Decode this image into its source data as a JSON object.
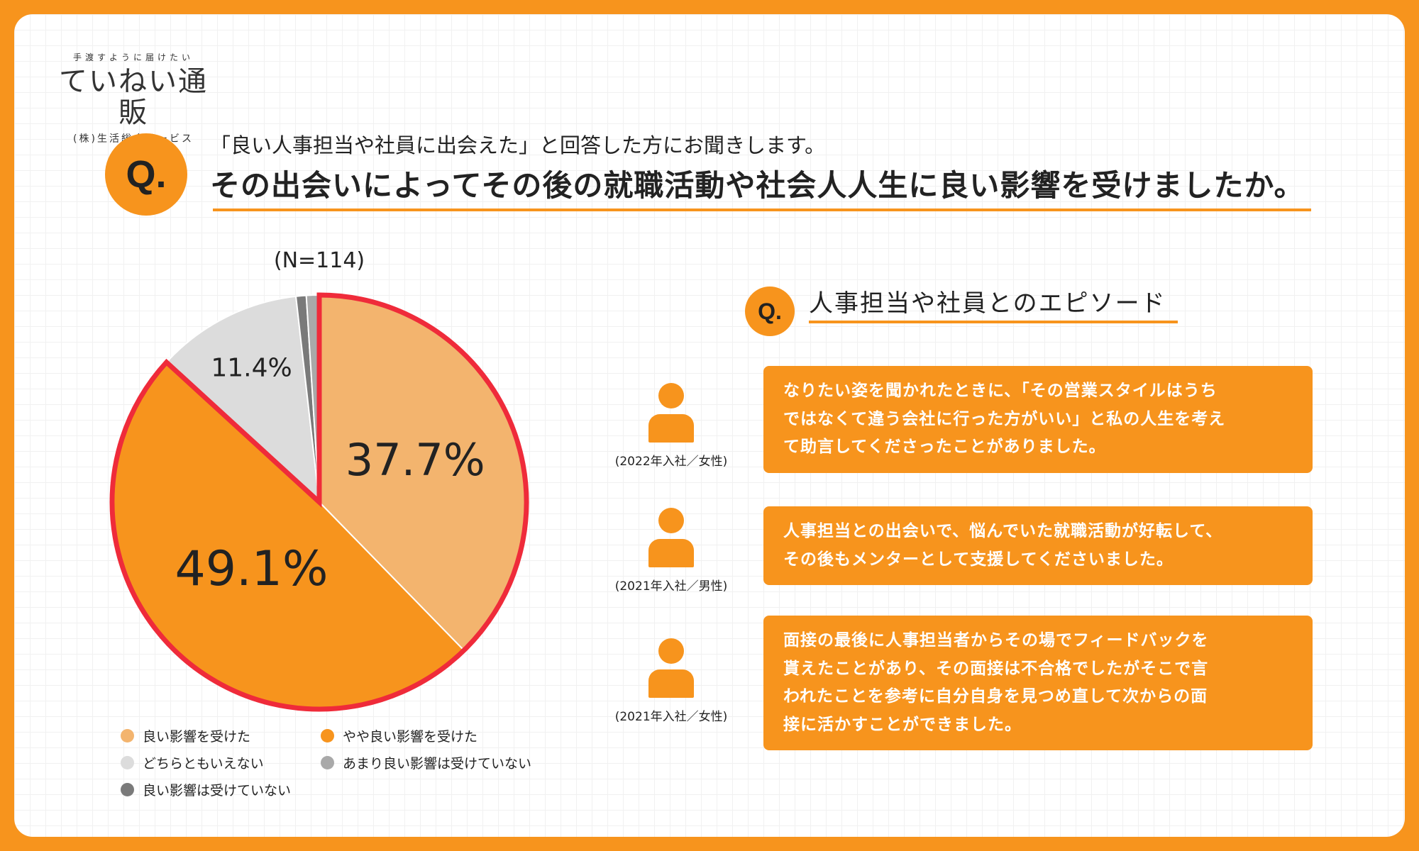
{
  "logo": {
    "tagline": "手渡すように届けたい",
    "name": "ていねい通販",
    "company": "(株)生活総合サービス"
  },
  "question": {
    "badge": "Q.",
    "intro": "「良い人事担当や社員に出会えた」と回答した方にお聞きします。",
    "main": "その出会いによってその後の就職活動や社会人人生に良い影響を受けましたか。"
  },
  "sample_size": "(N=114)",
  "chart_data": {
    "type": "pie",
    "categories": [
      "良い影響を受けた",
      "やや良い影響を受けた",
      "どちらともいえない",
      "あまり良い影響は受けていない",
      "良い影響は受けていない"
    ],
    "values": [
      37.7,
      49.1,
      11.4,
      1.0,
      0.8
    ],
    "colors": [
      "#f3b46e",
      "#f7941d",
      "#dcdcdc",
      "#a9a9a9",
      "#7a7a7a"
    ],
    "labels": [
      "37.7%",
      "49.1%",
      "11.4%",
      "",
      ""
    ],
    "highlight_stroke": "#ef2b3a",
    "legend_placement": "bottom"
  },
  "episodes": {
    "badge": "Q.",
    "title": "人事担当や社員とのエピソード",
    "items": [
      {
        "caption": "(2022年入社／女性)",
        "lines": [
          "なりたい姿を聞かれたときに、「その営業スタイルはうち",
          "ではなくて違う会社に行った方がいい」と私の人生を考え",
          "て助言してくださったことがありました。"
        ]
      },
      {
        "caption": "(2021年入社／男性)",
        "lines": [
          "人事担当との出会いで、悩んでいた就職活動が好転して、",
          "その後もメンターとして支援してくださいました。"
        ]
      },
      {
        "caption": "(2021年入社／女性)",
        "lines": [
          "面接の最後に人事担当者からその場でフィードバックを",
          "貰えたことがあり、その面接は不合格でしたがそこで言",
          "われたことを参考に自分自身を見つめ直して次からの面",
          "接に活かすことができました。"
        ]
      }
    ]
  }
}
